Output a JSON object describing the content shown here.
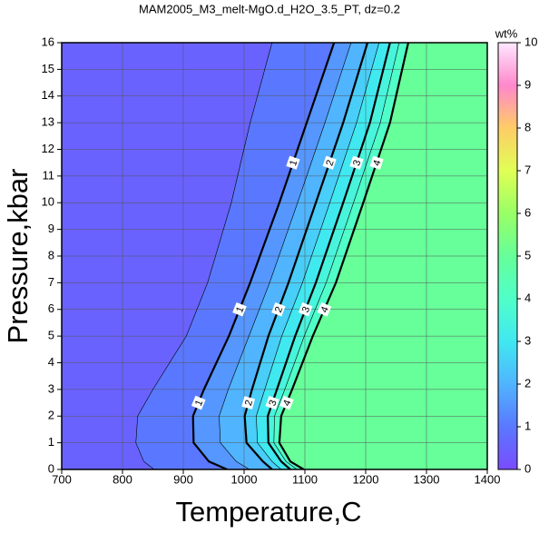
{
  "chart_data": {
    "type": "contour",
    "title": "MAM2005_M3_melt-MgO.d_H2O_3.5_PT, dz=0.2",
    "x_label": "Temperature,C",
    "y_label": "Pressure,kbar",
    "xlim": [
      700,
      1400
    ],
    "ylim": [
      0,
      16
    ],
    "xticks": [
      700,
      800,
      900,
      1000,
      1100,
      1200,
      1300,
      1400
    ],
    "yticks": [
      0,
      1,
      2,
      3,
      4,
      5,
      6,
      7,
      8,
      9,
      10,
      11,
      12,
      13,
      14,
      15,
      16
    ],
    "grid": true,
    "surface_max": 5,
    "contours": [
      {
        "level": 0.5,
        "x": [
          1046,
          1010,
          979,
          940,
          905,
          850,
          825,
          822,
          835,
          852
        ],
        "y": [
          16,
          13,
          10,
          7,
          5,
          3,
          2,
          1,
          0.3,
          0
        ]
      },
      {
        "level": 1,
        "label": "1",
        "x": [
          1148,
          1103,
          1058,
          1010,
          975,
          934,
          916,
          917,
          942,
          972
        ],
        "y": [
          16,
          13,
          10,
          7,
          5,
          3,
          2,
          1,
          0.3,
          0
        ]
      },
      {
        "level": 1.5,
        "x": [
          1176,
          1133,
          1088,
          1042,
          1008,
          974,
          959,
          961,
          987,
          1009
        ],
        "y": [
          16,
          13,
          10,
          7,
          5,
          3,
          2,
          1,
          0.3,
          0
        ]
      },
      {
        "level": 2,
        "label": "2",
        "x": [
          1203,
          1163,
          1118,
          1073,
          1040,
          1013,
          1001,
          1004,
          1031,
          1046
        ],
        "y": [
          16,
          13,
          10,
          7,
          5,
          3,
          2,
          1,
          0.3,
          0
        ]
      },
      {
        "level": 2.5,
        "x": [
          1222,
          1185,
          1141,
          1096,
          1062,
          1034,
          1020,
          1022,
          1046,
          1061
        ],
        "y": [
          16,
          13,
          10,
          7,
          5,
          3,
          2,
          1,
          0.3,
          0
        ]
      },
      {
        "level": 3,
        "label": "3",
        "x": [
          1240,
          1207,
          1163,
          1118,
          1084,
          1054,
          1039,
          1040,
          1061,
          1076
        ],
        "y": [
          16,
          13,
          10,
          7,
          5,
          3,
          2,
          1,
          0.3,
          0
        ]
      },
      {
        "level": 3.5,
        "x": [
          1255,
          1224,
          1180,
          1135,
          1099,
          1067,
          1050,
          1049,
          1069,
          1087
        ],
        "y": [
          16,
          13,
          10,
          7,
          5,
          3,
          2,
          1,
          0.3,
          0
        ]
      },
      {
        "level": 4,
        "label": "4",
        "x": [
          1270,
          1240,
          1196,
          1151,
          1113,
          1079,
          1061,
          1058,
          1076,
          1098
        ],
        "y": [
          16,
          13,
          10,
          7,
          5,
          3,
          2,
          1,
          0.3,
          0
        ]
      }
    ],
    "colorbar": {
      "label": "wt%",
      "lim": [
        0,
        10
      ],
      "ticks": [
        0,
        1,
        2,
        3,
        4,
        5,
        6,
        7,
        8,
        9,
        10
      ],
      "colormap": [
        {
          "value": 0,
          "color": "#7a4cff"
        },
        {
          "value": 1,
          "color": "#5a78ff"
        },
        {
          "value": 2,
          "color": "#50b4ff"
        },
        {
          "value": 3,
          "color": "#40e8f0"
        },
        {
          "value": 4,
          "color": "#50ffc8"
        },
        {
          "value": 5,
          "color": "#66ff99"
        },
        {
          "value": 6,
          "color": "#99ff66"
        },
        {
          "value": 7,
          "color": "#e0ff55"
        },
        {
          "value": 8,
          "color": "#ffcc66"
        },
        {
          "value": 9,
          "color": "#ff88cc"
        },
        {
          "value": 10,
          "color": "#ffe8ff"
        }
      ]
    }
  }
}
